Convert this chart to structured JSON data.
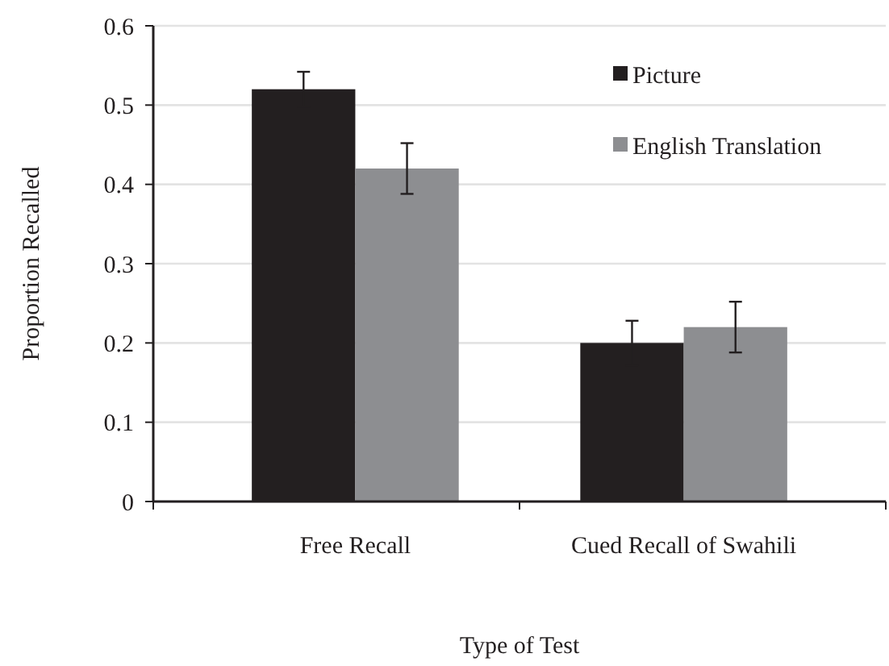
{
  "chart_data": {
    "type": "bar",
    "xlabel": "Type of Test",
    "ylabel": "Proportion Recalled",
    "categories": [
      "Free Recall",
      "Cued Recall of Swahili"
    ],
    "series": [
      {
        "name": "Picture",
        "color": "#231f20",
        "values": [
          0.52,
          0.2
        ],
        "errors": [
          0.022,
          0.028
        ]
      },
      {
        "name": "English Translation",
        "color": "#8d8e91",
        "values": [
          0.42,
          0.22
        ],
        "errors": [
          0.032,
          0.032
        ]
      }
    ],
    "ylim": [
      0,
      0.6
    ],
    "yticks": [
      0,
      0.1,
      0.2,
      0.3,
      0.4,
      0.5,
      0.6
    ],
    "grid": "y",
    "legend": "top right"
  }
}
